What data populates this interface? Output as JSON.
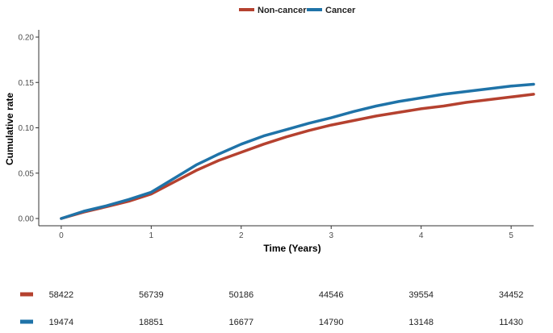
{
  "chart_data": {
    "type": "line",
    "xlabel": "Time (Years)",
    "ylabel": "Cumulative rate",
    "xlim": [
      -0.25,
      5.25
    ],
    "ylim": [
      -0.008,
      0.208
    ],
    "x_ticks": [
      0,
      1,
      2,
      3,
      4,
      5
    ],
    "x_tick_labels": [
      "0",
      "1",
      "2",
      "3",
      "4",
      "5"
    ],
    "y_ticks": [
      0.0,
      0.05,
      0.1,
      0.15,
      0.2
    ],
    "y_tick_labels": [
      "0.00",
      "0.05",
      "0.10",
      "0.15",
      "0.20"
    ],
    "grid": false,
    "legend_position": "top",
    "series": [
      {
        "name": "Non-cancer",
        "color": "#b5412f",
        "x": [
          0,
          0.25,
          0.5,
          0.75,
          1.0,
          1.25,
          1.5,
          1.75,
          2.0,
          2.25,
          2.5,
          2.75,
          3.0,
          3.25,
          3.5,
          3.75,
          4.0,
          4.25,
          4.5,
          4.75,
          5.0,
          5.25
        ],
        "y": [
          0.0,
          0.007,
          0.013,
          0.019,
          0.027,
          0.04,
          0.053,
          0.064,
          0.073,
          0.082,
          0.09,
          0.097,
          0.103,
          0.108,
          0.113,
          0.117,
          0.121,
          0.124,
          0.128,
          0.131,
          0.134,
          0.137
        ]
      },
      {
        "name": "Cancer",
        "color": "#1f73a8",
        "x": [
          0,
          0.25,
          0.5,
          0.75,
          1.0,
          1.25,
          1.5,
          1.75,
          2.0,
          2.25,
          2.5,
          2.75,
          3.0,
          3.25,
          3.5,
          3.75,
          4.0,
          4.25,
          4.5,
          4.75,
          5.0,
          5.25
        ],
        "y": [
          0.0,
          0.008,
          0.014,
          0.021,
          0.029,
          0.044,
          0.059,
          0.071,
          0.082,
          0.091,
          0.098,
          0.105,
          0.111,
          0.118,
          0.124,
          0.129,
          0.133,
          0.137,
          0.14,
          0.143,
          0.146,
          0.148
        ]
      }
    ],
    "risk_table": {
      "rows": [
        {
          "color": "#b5412f",
          "values": [
            "58422",
            "56739",
            "50186",
            "44546",
            "39554",
            "34452"
          ]
        },
        {
          "color": "#1f73a8",
          "values": [
            "19474",
            "18851",
            "16677",
            "14790",
            "13148",
            "11430"
          ]
        }
      ]
    }
  }
}
